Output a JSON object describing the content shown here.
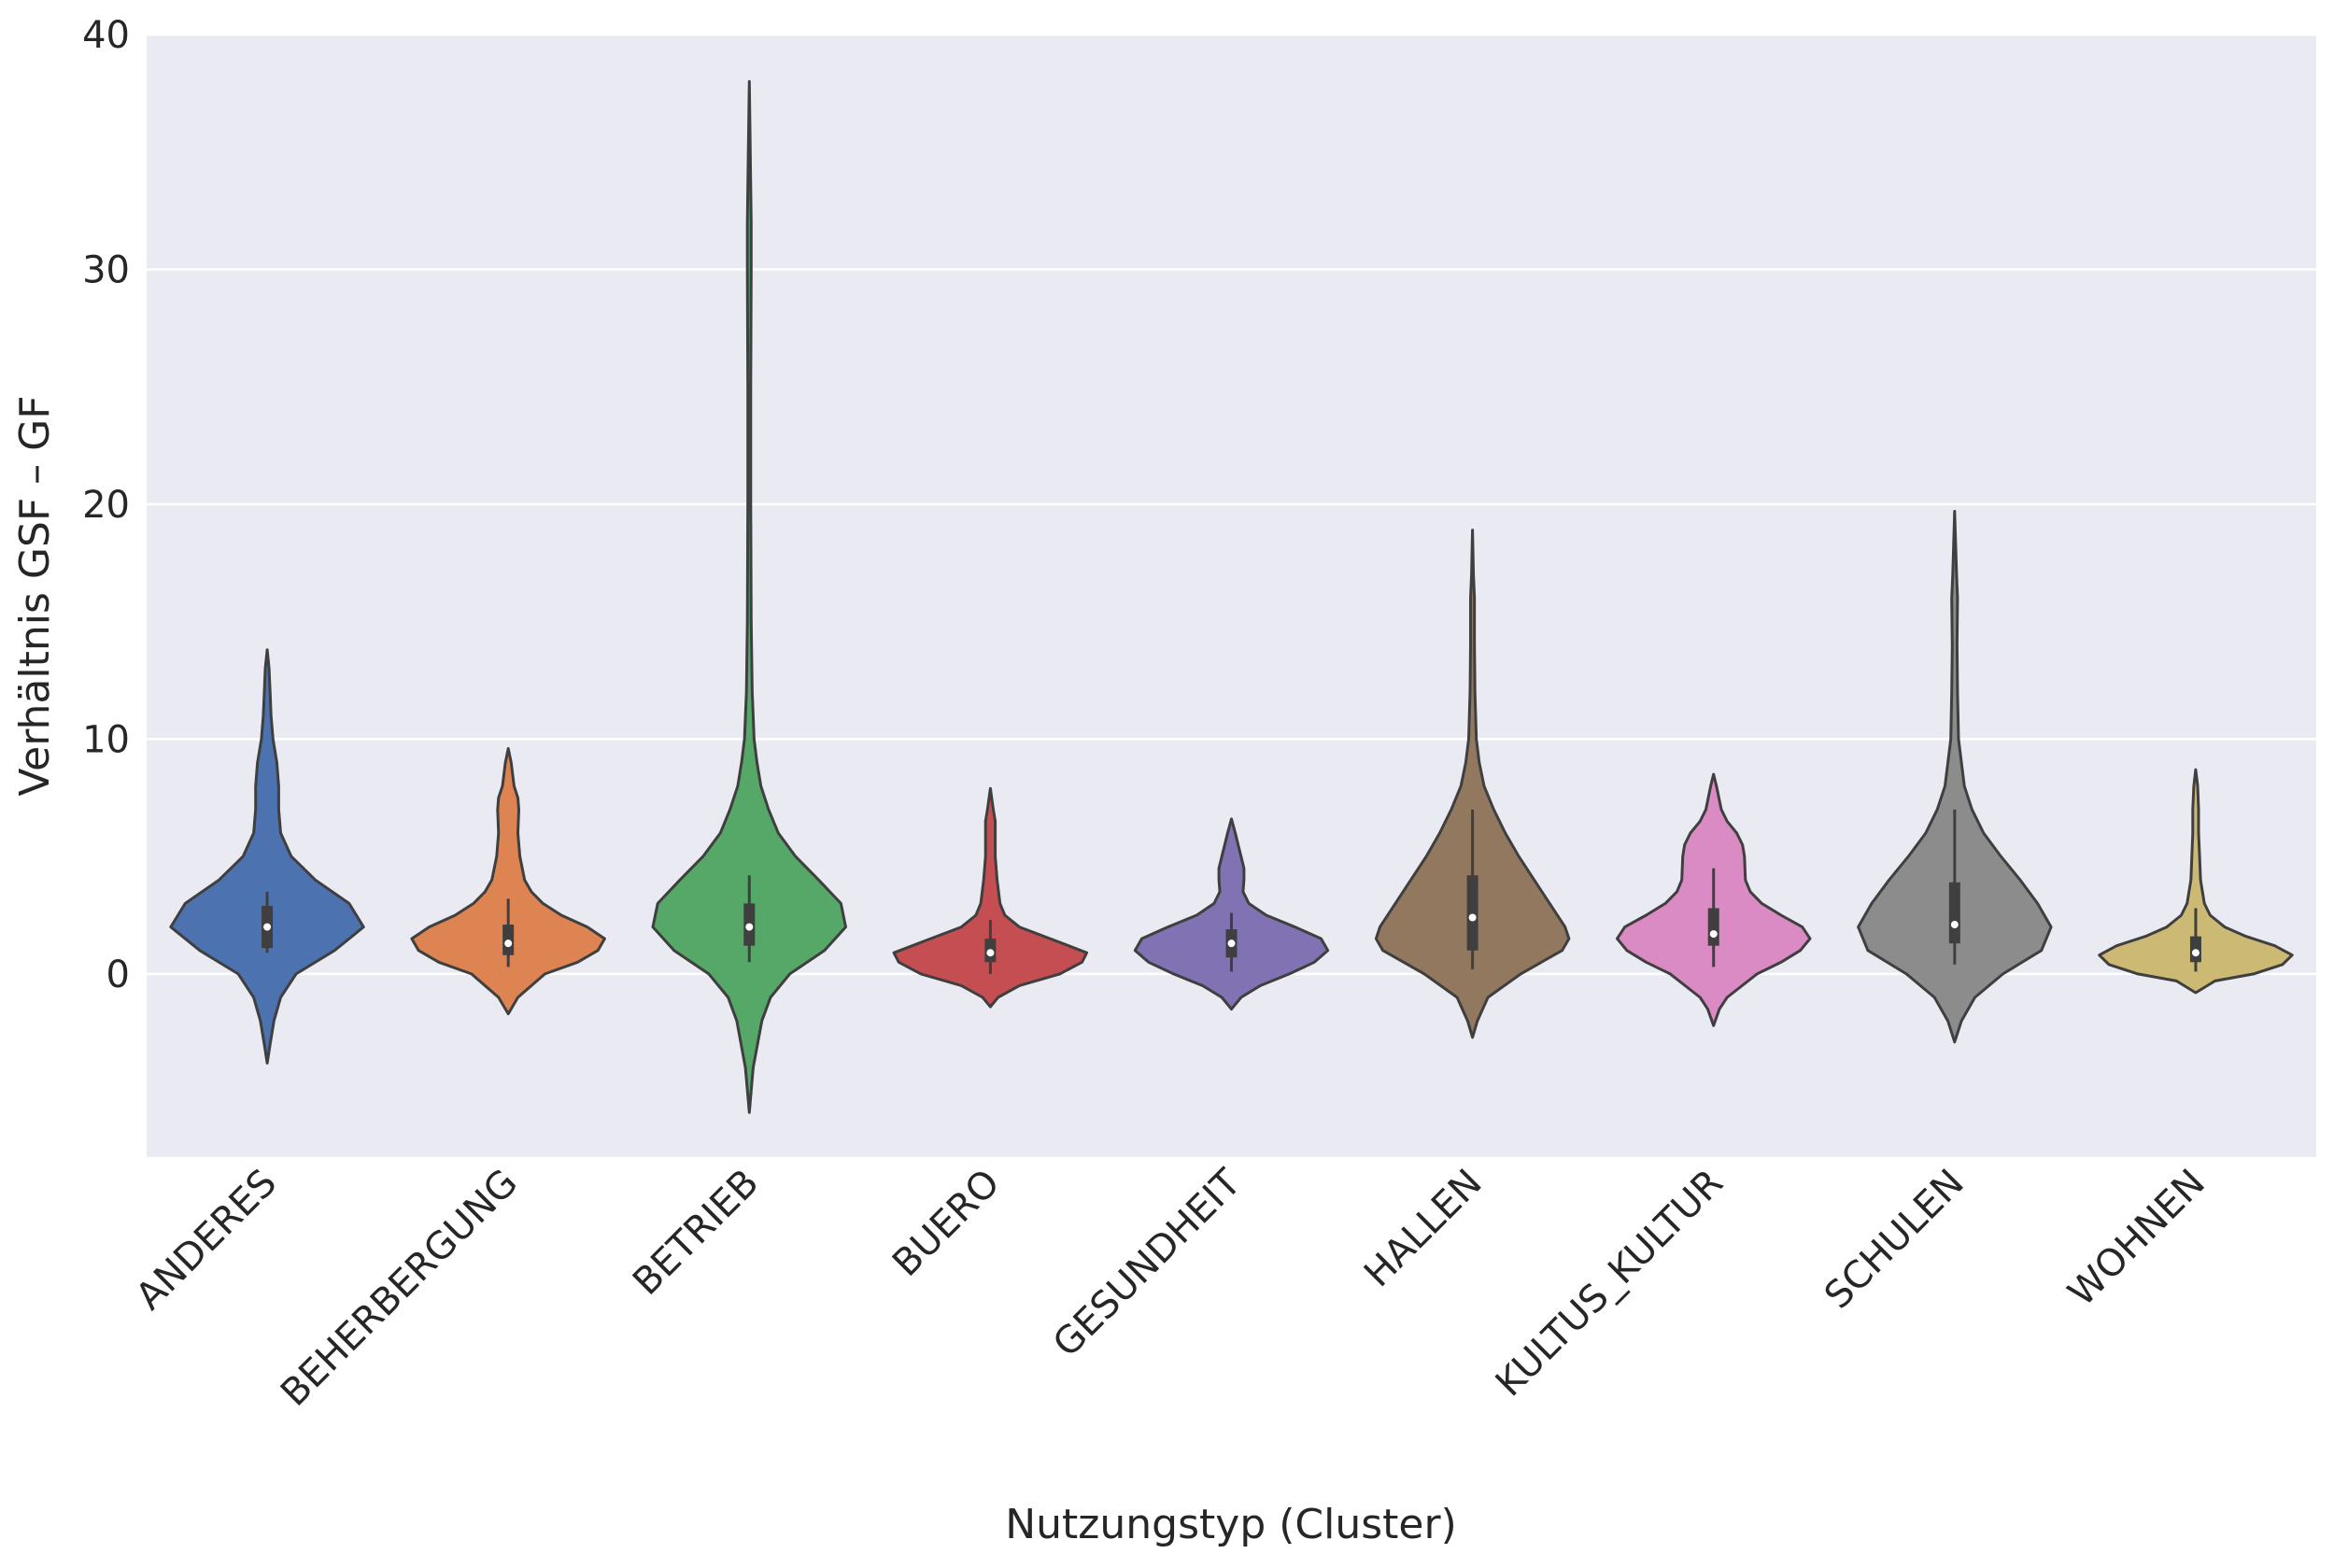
{
  "chart_data": {
    "type": "violin",
    "title": "",
    "xlabel": "Nutzungstyp (Cluster)",
    "ylabel": "Verhältnis GSF – GF",
    "ylim": [
      -7.8,
      40
    ],
    "yticks": [
      0,
      10,
      20,
      30,
      40
    ],
    "grid": true,
    "legend": "none",
    "background": "#eaeaf2",
    "categories": [
      "ANDERES",
      "BEHERBERGUNG",
      "BETRIEB",
      "BUERO",
      "GESUNDHEIT",
      "HALLEN",
      "KULTUS_KULTUR",
      "SCHULEN",
      "WOHNEN"
    ],
    "violins": [
      {
        "category": "ANDERES",
        "color": "#4c72b0",
        "min": -3.8,
        "max": 13.8,
        "q1": 1.1,
        "median": 2.0,
        "q3": 2.9,
        "whisker_low": 0.9,
        "whisker_high": 3.5,
        "density": [
          [
            -3.8,
            0.0
          ],
          [
            -3.0,
            0.03
          ],
          [
            -2.0,
            0.07
          ],
          [
            -1.0,
            0.14
          ],
          [
            0.0,
            0.3
          ],
          [
            1.0,
            0.7
          ],
          [
            2.0,
            1.0
          ],
          [
            3.0,
            0.85
          ],
          [
            4.0,
            0.5
          ],
          [
            5.0,
            0.25
          ],
          [
            6.0,
            0.14
          ],
          [
            7.0,
            0.12
          ],
          [
            8.0,
            0.12
          ],
          [
            9.0,
            0.1
          ],
          [
            10.0,
            0.06
          ],
          [
            11.0,
            0.04
          ],
          [
            12.0,
            0.03
          ],
          [
            13.0,
            0.02
          ],
          [
            13.8,
            0.0
          ]
        ]
      },
      {
        "category": "BEHERBERGUNG",
        "color": "#dd8452",
        "min": -1.7,
        "max": 9.6,
        "q1": 0.8,
        "median": 1.3,
        "q3": 2.1,
        "whisker_low": 0.3,
        "whisker_high": 3.2,
        "density": [
          [
            -1.7,
            0.0
          ],
          [
            -1.0,
            0.1
          ],
          [
            0.0,
            0.38
          ],
          [
            0.5,
            0.72
          ],
          [
            1.0,
            0.93
          ],
          [
            1.5,
            1.0
          ],
          [
            2.0,
            0.82
          ],
          [
            2.5,
            0.55
          ],
          [
            3.0,
            0.36
          ],
          [
            3.5,
            0.24
          ],
          [
            4.0,
            0.17
          ],
          [
            5.0,
            0.12
          ],
          [
            6.0,
            0.1
          ],
          [
            7.0,
            0.11
          ],
          [
            7.5,
            0.1
          ],
          [
            8.0,
            0.06
          ],
          [
            9.0,
            0.03
          ],
          [
            9.6,
            0.0
          ]
        ]
      },
      {
        "category": "BETRIEB",
        "color": "#55a868",
        "min": -5.9,
        "max": 38.0,
        "q1": 1.2,
        "median": 2.0,
        "q3": 3.0,
        "whisker_low": 0.5,
        "whisker_high": 4.2,
        "density": [
          [
            -5.9,
            0.0
          ],
          [
            -4.0,
            0.04
          ],
          [
            -2.0,
            0.13
          ],
          [
            -1.0,
            0.22
          ],
          [
            0.0,
            0.42
          ],
          [
            1.0,
            0.78
          ],
          [
            2.0,
            1.0
          ],
          [
            3.0,
            0.95
          ],
          [
            4.0,
            0.72
          ],
          [
            5.0,
            0.48
          ],
          [
            6.0,
            0.3
          ],
          [
            7.0,
            0.2
          ],
          [
            8.0,
            0.12
          ],
          [
            9.0,
            0.08
          ],
          [
            10.0,
            0.05
          ],
          [
            12.0,
            0.03
          ],
          [
            15.0,
            0.02
          ],
          [
            20.0,
            0.015
          ],
          [
            25.0,
            0.015
          ],
          [
            30.0,
            0.02
          ],
          [
            32.0,
            0.02
          ],
          [
            35.0,
            0.01
          ],
          [
            38.0,
            0.0
          ]
        ]
      },
      {
        "category": "BUERO",
        "color": "#c44e52",
        "min": -1.4,
        "max": 7.9,
        "q1": 0.5,
        "median": 0.9,
        "q3": 1.5,
        "whisker_low": 0.0,
        "whisker_high": 2.3,
        "density": [
          [
            -1.4,
            0.0
          ],
          [
            -1.0,
            0.08
          ],
          [
            -0.5,
            0.3
          ],
          [
            0.0,
            0.72
          ],
          [
            0.5,
            0.95
          ],
          [
            0.9,
            1.0
          ],
          [
            1.5,
            0.62
          ],
          [
            2.0,
            0.3
          ],
          [
            2.5,
            0.15
          ],
          [
            3.0,
            0.1
          ],
          [
            4.0,
            0.07
          ],
          [
            5.0,
            0.05
          ],
          [
            6.0,
            0.05
          ],
          [
            6.5,
            0.05
          ],
          [
            7.0,
            0.03
          ],
          [
            7.9,
            0.0
          ]
        ]
      },
      {
        "category": "GESUNDHEIT",
        "color": "#8172b3",
        "min": -1.5,
        "max": 6.6,
        "q1": 0.7,
        "median": 1.3,
        "q3": 1.9,
        "whisker_low": 0.1,
        "whisker_high": 2.6,
        "density": [
          [
            -1.5,
            0.0
          ],
          [
            -1.0,
            0.1
          ],
          [
            -0.5,
            0.3
          ],
          [
            0.0,
            0.6
          ],
          [
            0.5,
            0.86
          ],
          [
            1.0,
            1.0
          ],
          [
            1.5,
            0.93
          ],
          [
            2.0,
            0.66
          ],
          [
            2.5,
            0.36
          ],
          [
            3.0,
            0.18
          ],
          [
            3.5,
            0.12
          ],
          [
            4.0,
            0.13
          ],
          [
            4.5,
            0.13
          ],
          [
            5.0,
            0.1
          ],
          [
            5.5,
            0.07
          ],
          [
            6.0,
            0.04
          ],
          [
            6.6,
            0.0
          ]
        ]
      },
      {
        "category": "HALLEN",
        "color": "#937860",
        "min": -2.7,
        "max": 18.9,
        "q1": 1.0,
        "median": 2.4,
        "q3": 4.2,
        "whisker_low": 0.2,
        "whisker_high": 7.0,
        "density": [
          [
            -2.7,
            0.0
          ],
          [
            -2.0,
            0.05
          ],
          [
            -1.0,
            0.16
          ],
          [
            0.0,
            0.5
          ],
          [
            1.0,
            0.93
          ],
          [
            1.5,
            1.0
          ],
          [
            2.0,
            0.96
          ],
          [
            3.0,
            0.8
          ],
          [
            4.0,
            0.64
          ],
          [
            5.0,
            0.48
          ],
          [
            6.0,
            0.34
          ],
          [
            7.0,
            0.22
          ],
          [
            8.0,
            0.12
          ],
          [
            9.0,
            0.07
          ],
          [
            10.0,
            0.04
          ],
          [
            12.0,
            0.025
          ],
          [
            14.0,
            0.02
          ],
          [
            16.0,
            0.02
          ],
          [
            17.0,
            0.01
          ],
          [
            18.9,
            0.0
          ]
        ]
      },
      {
        "category": "KULTUS_KULTUR",
        "color": "#da8bc3",
        "min": -2.2,
        "max": 8.5,
        "q1": 1.2,
        "median": 1.7,
        "q3": 2.8,
        "whisker_low": 0.3,
        "whisker_high": 4.5,
        "density": [
          [
            -2.2,
            0.0
          ],
          [
            -1.5,
            0.06
          ],
          [
            -1.0,
            0.14
          ],
          [
            0.0,
            0.45
          ],
          [
            0.5,
            0.7
          ],
          [
            1.0,
            0.9
          ],
          [
            1.5,
            1.0
          ],
          [
            2.0,
            0.92
          ],
          [
            2.5,
            0.7
          ],
          [
            3.0,
            0.5
          ],
          [
            3.5,
            0.38
          ],
          [
            4.0,
            0.33
          ],
          [
            5.0,
            0.32
          ],
          [
            5.5,
            0.3
          ],
          [
            6.0,
            0.24
          ],
          [
            6.5,
            0.14
          ],
          [
            7.0,
            0.08
          ],
          [
            8.0,
            0.03
          ],
          [
            8.5,
            0.0
          ]
        ]
      },
      {
        "category": "SCHULEN",
        "color": "#8c8c8c",
        "min": -2.9,
        "max": 19.7,
        "q1": 1.3,
        "median": 2.1,
        "q3": 3.9,
        "whisker_low": 0.4,
        "whisker_high": 7.0,
        "density": [
          [
            -2.9,
            0.0
          ],
          [
            -2.0,
            0.07
          ],
          [
            -1.0,
            0.21
          ],
          [
            0.0,
            0.5
          ],
          [
            1.0,
            0.9
          ],
          [
            2.0,
            1.0
          ],
          [
            3.0,
            0.86
          ],
          [
            4.0,
            0.68
          ],
          [
            5.0,
            0.48
          ],
          [
            6.0,
            0.3
          ],
          [
            7.0,
            0.18
          ],
          [
            8.0,
            0.1
          ],
          [
            9.0,
            0.07
          ],
          [
            10.0,
            0.04
          ],
          [
            12.0,
            0.03
          ],
          [
            14.0,
            0.025
          ],
          [
            16.0,
            0.03
          ],
          [
            17.0,
            0.02
          ],
          [
            19.7,
            0.0
          ]
        ]
      },
      {
        "category": "WOHNEN",
        "color": "#ccb974",
        "min": -0.8,
        "max": 8.7,
        "q1": 0.5,
        "median": 0.9,
        "q3": 1.6,
        "whisker_low": 0.1,
        "whisker_high": 2.8,
        "density": [
          [
            -0.8,
            0.0
          ],
          [
            -0.3,
            0.2
          ],
          [
            0.0,
            0.6
          ],
          [
            0.4,
            0.9
          ],
          [
            0.8,
            1.0
          ],
          [
            1.2,
            0.82
          ],
          [
            1.6,
            0.52
          ],
          [
            2.0,
            0.3
          ],
          [
            2.5,
            0.15
          ],
          [
            3.0,
            0.09
          ],
          [
            4.0,
            0.05
          ],
          [
            5.0,
            0.04
          ],
          [
            6.0,
            0.03
          ],
          [
            7.0,
            0.03
          ],
          [
            8.0,
            0.02
          ],
          [
            8.7,
            0.0
          ]
        ]
      }
    ]
  }
}
